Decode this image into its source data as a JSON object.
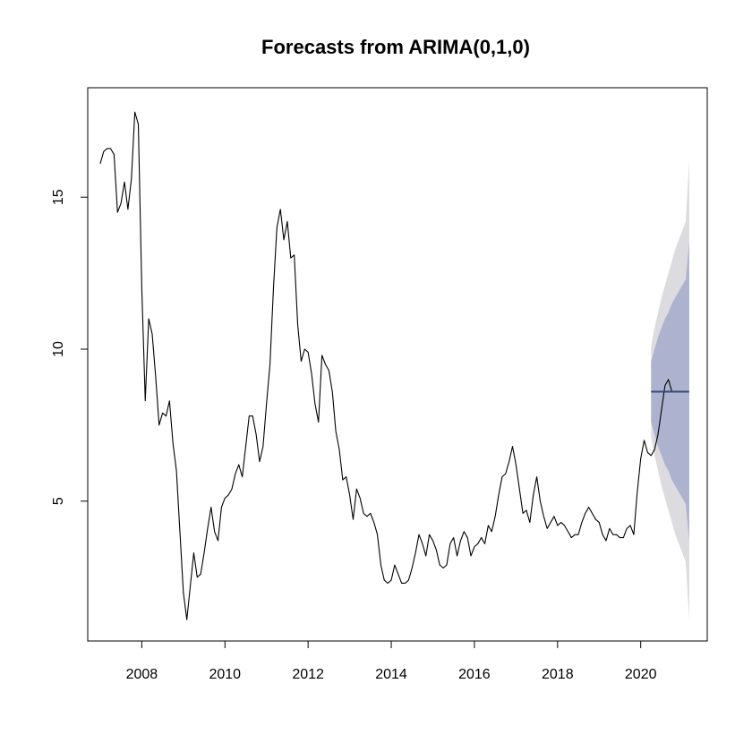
{
  "chart_data": {
    "type": "line",
    "title": "Forecasts from ARIMA(0,1,0)",
    "xlabel": "",
    "ylabel": "",
    "xlim": [
      2006.7,
      2021.6
    ],
    "ylim": [
      0.4,
      18.6
    ],
    "x_ticks": [
      2008,
      2010,
      2012,
      2014,
      2016,
      2018,
      2020
    ],
    "x_tick_labels": [
      "2008",
      "2010",
      "2012",
      "2014",
      "2016",
      "2018",
      "2020"
    ],
    "y_ticks": [
      5,
      10,
      15
    ],
    "y_tick_labels": [
      "5",
      "10",
      "15"
    ],
    "grid": false,
    "colors": {
      "series": "#000000",
      "forecast": "#3d4a7a",
      "band80": "#adb2ce",
      "band95": "#dbdbe0"
    },
    "series": [
      {
        "role": "observed",
        "start": 2007.0,
        "frequency": 12,
        "values": [
          16.1,
          16.5,
          16.6,
          16.6,
          16.4,
          14.5,
          14.8,
          15.5,
          14.6,
          15.6,
          17.8,
          17.4,
          12.0,
          8.3,
          11.0,
          10.5,
          9.1,
          7.5,
          7.9,
          7.8,
          8.3,
          6.9,
          6.0,
          4.0,
          2.0,
          1.1,
          2.2,
          3.3,
          2.5,
          2.6,
          3.3,
          4.1,
          4.8,
          4.0,
          3.7,
          4.8,
          5.1,
          5.2,
          5.4,
          5.9,
          6.2,
          5.8,
          6.8,
          7.8,
          7.8,
          7.2,
          6.3,
          6.8,
          8.2,
          9.5,
          12.0,
          14.0,
          14.6,
          13.6,
          14.2,
          13.0,
          13.1,
          10.8,
          9.6,
          10.0,
          9.9,
          9.2,
          8.2,
          7.6,
          9.8,
          9.5,
          9.3,
          8.6,
          7.3,
          6.7,
          5.7,
          5.8,
          5.2,
          4.4,
          5.4,
          5.1,
          4.6,
          4.5,
          4.6,
          4.3,
          3.9,
          2.9,
          2.4,
          2.3,
          2.4,
          2.9,
          2.6,
          2.3,
          2.3,
          2.4,
          2.8,
          3.3,
          3.9,
          3.6,
          3.2,
          3.9,
          3.7,
          3.4,
          2.9,
          2.8,
          2.9,
          3.6,
          3.8,
          3.2,
          3.7,
          4.0,
          3.8,
          3.2,
          3.5,
          3.6,
          3.8,
          3.6,
          4.2,
          4.0,
          4.5,
          5.2,
          5.8,
          5.9,
          6.3,
          6.8,
          6.2,
          5.4,
          4.6,
          4.7,
          4.3,
          5.2,
          5.8,
          5.0,
          4.5,
          4.1,
          4.3,
          4.5,
          4.2,
          4.3,
          4.2,
          4.0,
          3.8,
          3.9,
          3.9,
          4.3,
          4.6,
          4.8,
          4.6,
          4.4,
          4.3,
          3.9,
          3.7,
          4.1,
          3.9,
          3.9,
          3.8,
          3.8,
          4.1,
          4.2,
          3.9,
          5.3,
          6.4,
          7.0,
          6.6,
          6.5,
          6.7,
          7.2,
          8.0,
          8.8,
          9.0,
          8.6
        ]
      },
      {
        "role": "forecast",
        "start": 2020.25,
        "frequency": 12,
        "values": [
          8.6,
          8.6,
          8.6,
          8.6,
          8.6,
          8.6,
          8.6,
          8.6,
          8.6,
          8.6,
          8.6,
          8.6
        ]
      }
    ],
    "intervals": [
      {
        "level": 95,
        "lower": [
          7.1,
          6.5,
          6.0,
          5.5,
          5.1,
          4.7,
          4.3,
          3.9,
          3.6,
          3.3,
          3.0,
          1.1
        ],
        "upper": [
          10.1,
          10.7,
          11.2,
          11.7,
          12.1,
          12.5,
          12.9,
          13.3,
          13.6,
          13.9,
          14.2,
          16.2
        ]
      },
      {
        "level": 80,
        "lower": [
          7.6,
          7.2,
          6.8,
          6.5,
          6.2,
          6.0,
          5.7,
          5.5,
          5.3,
          5.1,
          4.9,
          3.7
        ],
        "upper": [
          9.6,
          10.0,
          10.4,
          10.7,
          11.0,
          11.2,
          11.5,
          11.7,
          11.9,
          12.1,
          12.3,
          13.5
        ]
      }
    ]
  }
}
